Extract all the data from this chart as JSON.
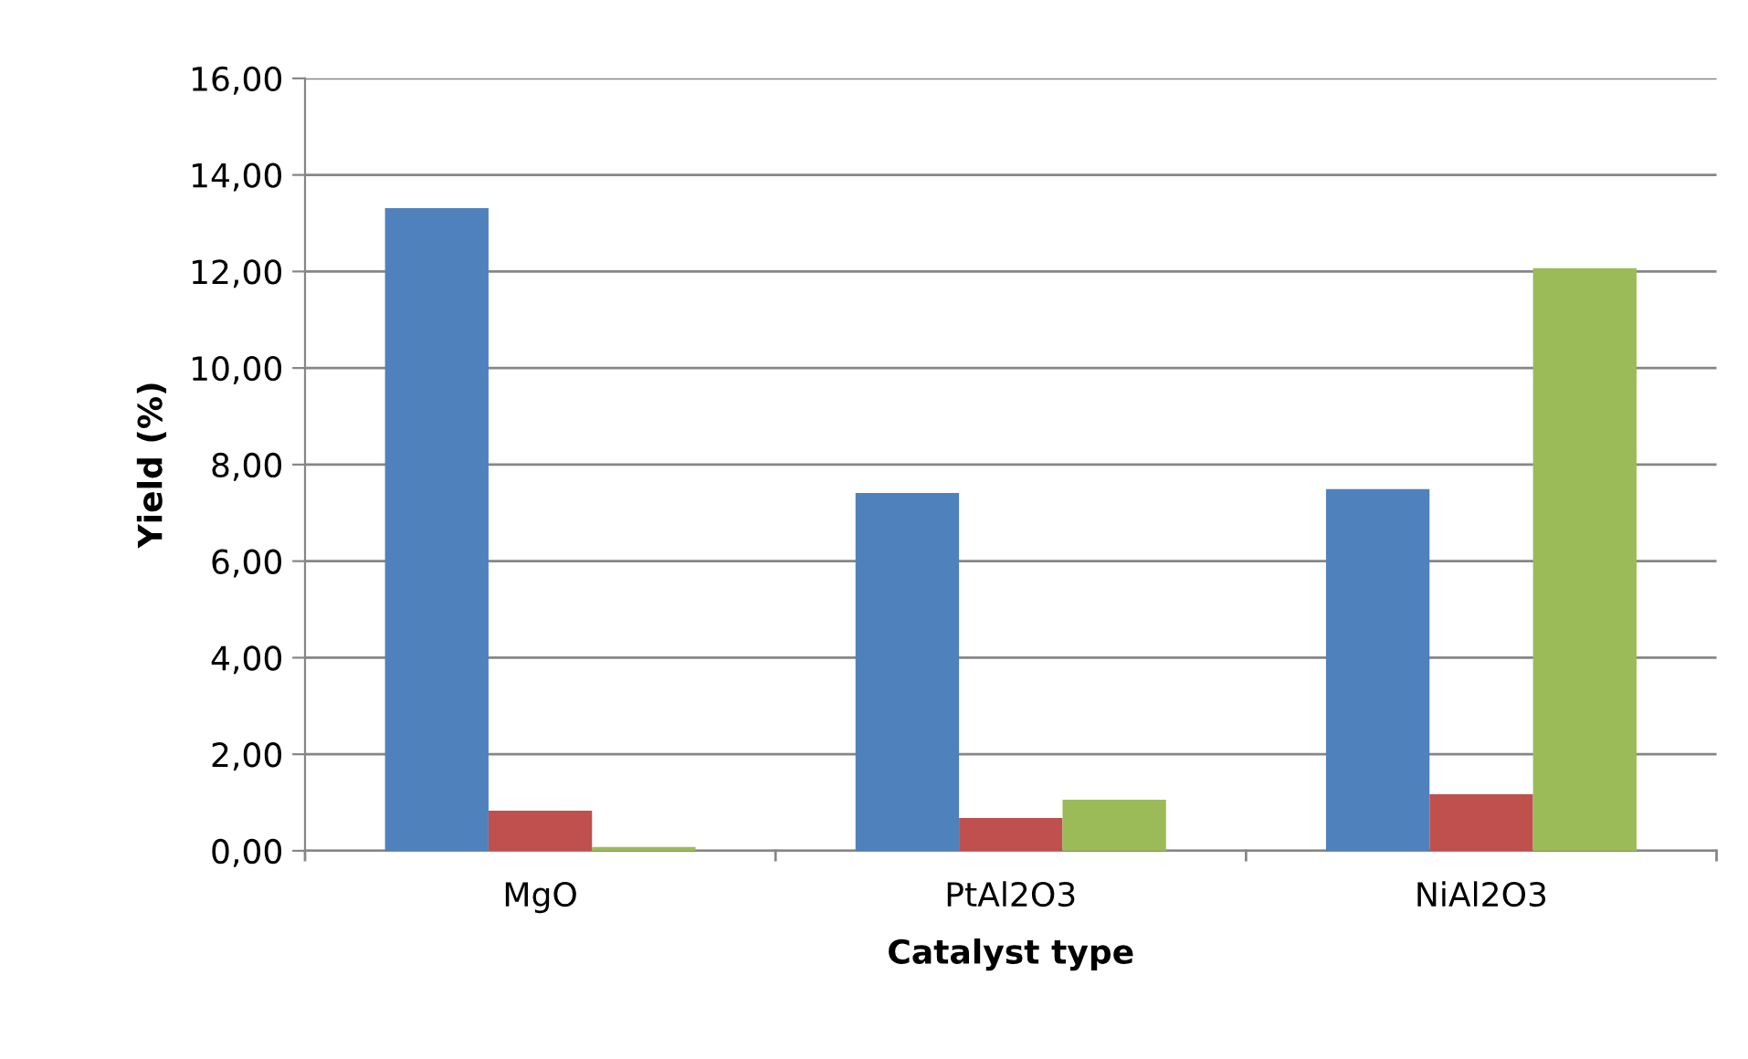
{
  "chart_data": {
    "type": "bar",
    "xlabel": "Catalyst type",
    "ylabel": "Yield (%)",
    "categories": [
      "MgO",
      "PtAl2O3",
      "NiAl2O3"
    ],
    "series": [
      {
        "color": "#4f81bd",
        "values": [
          13.31,
          7.41,
          7.49
        ]
      },
      {
        "color": "#c0504d",
        "values": [
          0.83,
          0.68,
          1.17
        ]
      },
      {
        "color": "#9bbb59",
        "values": [
          0.08,
          1.06,
          12.07
        ]
      }
    ],
    "ylim": [
      0,
      16
    ],
    "yticks": [
      {
        "value": 0,
        "label": "0,00"
      },
      {
        "value": 2,
        "label": "2,00"
      },
      {
        "value": 4,
        "label": "4,00"
      },
      {
        "value": 6,
        "label": "6,00"
      },
      {
        "value": 8,
        "label": "8,00"
      },
      {
        "value": 10,
        "label": "10,00"
      },
      {
        "value": 12,
        "label": "12,00"
      },
      {
        "value": 14,
        "label": "14,00"
      },
      {
        "value": 16,
        "label": "16,00"
      }
    ],
    "grid": "y",
    "legend": false
  }
}
